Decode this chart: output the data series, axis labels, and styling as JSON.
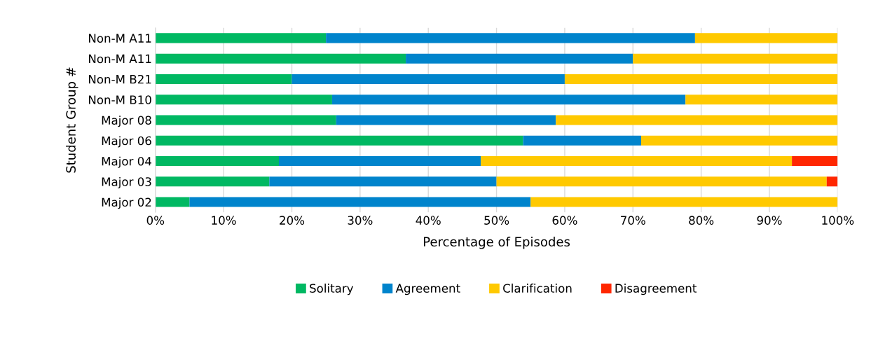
{
  "chart_data": {
    "type": "bar",
    "orientation": "horizontal",
    "stacked": true,
    "xlabel": "Percentage of Episodes",
    "ylabel": "Student Group #",
    "categories": [
      "Non-M A11",
      "Non-M A11",
      "Non-M B21",
      "Non-M B10",
      "Major 08",
      "Major 06",
      "Major 04",
      "Major 03",
      "Major 02"
    ],
    "series": [
      {
        "name": "Solitary",
        "color": "#00b862",
        "values": [
          25,
          36.7,
          20,
          25.9,
          26.5,
          53.9,
          18.1,
          16.7,
          5
        ]
      },
      {
        "name": "Agreement",
        "color": "#0084cc",
        "values": [
          54.1,
          33.3,
          40,
          51.8,
          32.2,
          17.3,
          29.6,
          33.3,
          50
        ]
      },
      {
        "name": "Clarification",
        "color": "#ffc900",
        "values": [
          20.9,
          30,
          40,
          22.3,
          41.3,
          28.8,
          45.6,
          48.4,
          45
        ]
      },
      {
        "name": "Disagreement",
        "color": "#ff2600",
        "values": [
          0,
          0,
          0,
          0,
          0,
          0,
          6.7,
          1.6,
          0
        ]
      }
    ],
    "xlim": [
      0,
      100
    ],
    "xticks": [
      {
        "value": 0,
        "label": "0%"
      },
      {
        "value": 10,
        "label": "10%"
      },
      {
        "value": 20,
        "label": "20%"
      },
      {
        "value": 30,
        "label": "30%"
      },
      {
        "value": 40,
        "label": "40%"
      },
      {
        "value": 50,
        "label": "50%"
      },
      {
        "value": 60,
        "label": "60%"
      },
      {
        "value": 70,
        "label": "70%"
      },
      {
        "value": 80,
        "label": "80%"
      },
      {
        "value": 90,
        "label": "90%"
      },
      {
        "value": 100,
        "label": "100%"
      }
    ],
    "grid": "x",
    "legend": "bottom"
  }
}
